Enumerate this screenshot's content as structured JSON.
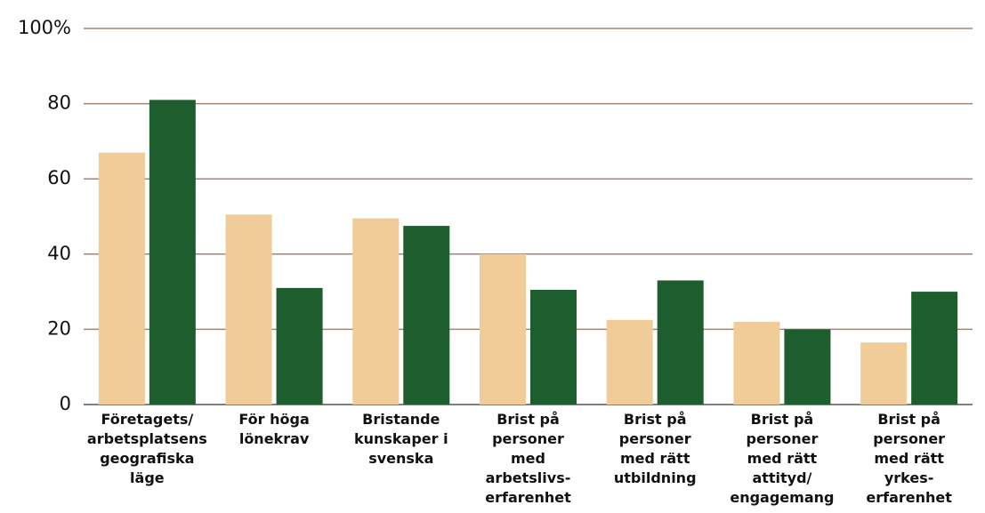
{
  "chart_data": {
    "type": "bar",
    "categories": [
      "Företagets/\narbetsplatsens\ngeografiska\nläge",
      "För höga\nlönekrav",
      "Bristande\nkunskaper i\nsvenska",
      "Brist på\npersoner\nmed\narbetslivs-\nerfarenhet",
      "Brist på\npersoner\nmed rätt\nutbildning",
      "Brist på\npersoner\nmed rätt\nattityd/\nengagemang",
      "Brist på\npersoner\nmed rätt\nyrkes-\nerfarenhet"
    ],
    "series": [
      {
        "color": "#f0cc98",
        "values": [
          67,
          50.5,
          49.5,
          40,
          22.5,
          22,
          16.5
        ]
      },
      {
        "color": "#1e5e2e",
        "values": [
          81,
          31,
          47.5,
          30.5,
          33,
          20,
          30
        ]
      }
    ],
    "ylim": [
      0,
      100
    ],
    "yticks": [
      0,
      20,
      40,
      60,
      80,
      {
        "value": 100,
        "label": "100%"
      }
    ],
    "grid": true
  }
}
